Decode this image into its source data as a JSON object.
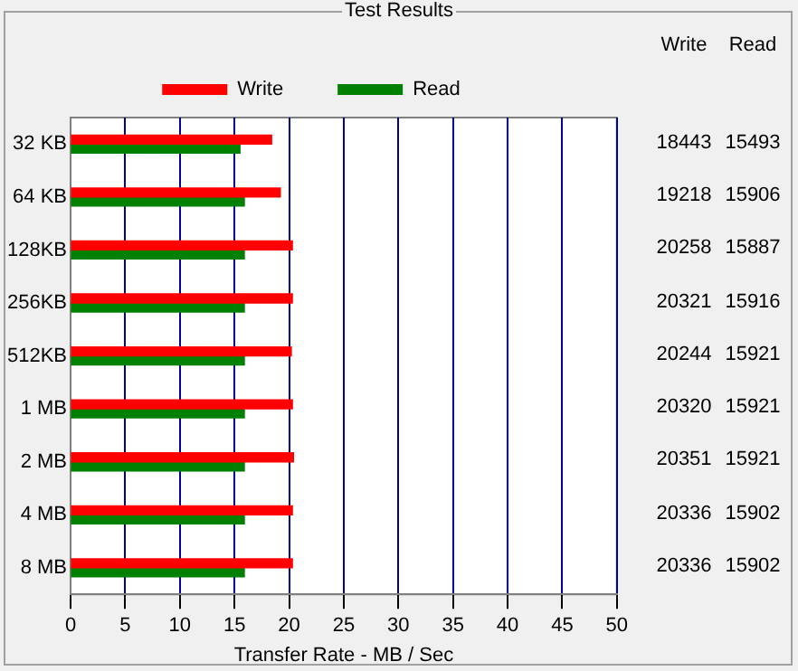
{
  "chart_data": {
    "type": "bar",
    "orientation": "horizontal",
    "title": "Test Results",
    "xlabel": "Transfer Rate - MB / Sec",
    "categories": [
      "32 KB",
      "64 KB",
      "128KB",
      "256KB",
      "512KB",
      "1 MB",
      "2 MB",
      "4 MB",
      "8 MB"
    ],
    "series": [
      {
        "name": "Write",
        "color": "#ff0000",
        "values": [
          18.4,
          19.2,
          20.3,
          20.3,
          20.2,
          20.3,
          20.4,
          20.3,
          20.3
        ]
      },
      {
        "name": "Read",
        "color": "#008000",
        "values": [
          15.5,
          15.9,
          15.9,
          15.9,
          15.9,
          15.9,
          15.9,
          15.9,
          15.9
        ]
      }
    ],
    "annotations": [
      "18443",
      "15493",
      "19218",
      "15906",
      "20258",
      "15887",
      "20321",
      "15916",
      "20244",
      "15921",
      "20320",
      "15921",
      "20351",
      "15921",
      "20336",
      "15902",
      "20336",
      "15902"
    ],
    "xlim": [
      0,
      50
    ],
    "xticks": [
      0,
      5,
      10,
      15,
      20,
      25,
      30,
      35,
      40,
      45,
      50
    ],
    "grid": "x",
    "legend": "top"
  }
}
